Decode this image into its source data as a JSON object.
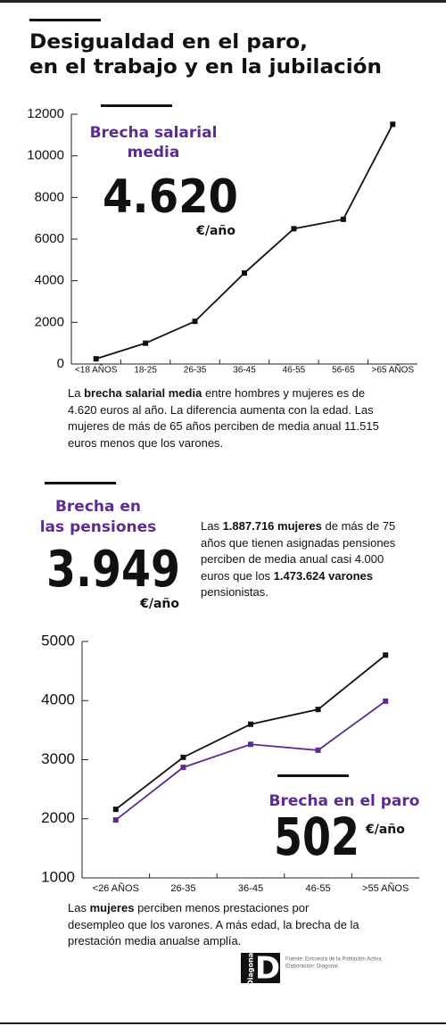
{
  "title": [
    "Desigualdad en el paro,",
    "en el trabajo y en la jubilación"
  ],
  "chart_data": [
    {
      "type": "line",
      "categories": [
        "<18 AÑOS",
        "18-25",
        "26-35",
        "36-45",
        "46-55",
        "56-65",
        ">65 AÑOS"
      ],
      "series": [
        {
          "color": "#111111",
          "values": [
            250,
            1000,
            2050,
            4370,
            6500,
            6950,
            11515
          ]
        }
      ],
      "ylim": [
        0,
        12000
      ],
      "yticks": [
        0,
        2000,
        4000,
        6000,
        8000,
        10000,
        12000
      ],
      "annotation": {
        "title": [
          "Brecha salarial",
          "media"
        ],
        "value": "4.620",
        "unit": "€/año"
      }
    },
    {
      "type": "line",
      "categories": [
        "<26 AÑOS",
        "26-35",
        "36-45",
        "46-55",
        ">55 AÑOS"
      ],
      "series": [
        {
          "color": "#111111",
          "values": [
            2160,
            3040,
            3600,
            3850,
            4770
          ]
        },
        {
          "color": "#5c2d91",
          "values": [
            1980,
            2870,
            3260,
            3160,
            3990
          ]
        }
      ],
      "ylim": [
        1000,
        5000
      ],
      "yticks": [
        1000,
        2000,
        3000,
        4000,
        5000
      ],
      "annotation": {
        "title": [
          "Brecha en el paro"
        ],
        "value": "502",
        "unit": "€/año"
      }
    }
  ],
  "pension": {
    "title": [
      "Brecha en",
      "las pensiones"
    ],
    "value": "3.949",
    "unit": "€/año"
  },
  "notes": [
    [
      "La ",
      "brecha salarial media",
      " entre hombres y mujeres es de 4.620 euros al año. La diferencia aumenta con la edad. Las mujeres de más de 65 años perciben de media anual 11.515 euros menos que los varones."
    ],
    [
      "Las ",
      "1.887.716 mujeres",
      " de más de 75 años que tienen asignadas pensiones perciben de media anual casi 4.000 euros que los ",
      "1.473.624 varones",
      " pensionistas."
    ],
    [
      "Las ",
      "mujeres",
      " perciben menos prestaciones por desempleo que los varones. A más edad, la brecha de la prestación media anualse amplía."
    ]
  ],
  "footer": {
    "logo": "D",
    "brand": "Diagonal",
    "source": [
      "Fuente: Encuesta de la Población Activa.",
      "Elaboración: Diagonal."
    ]
  }
}
